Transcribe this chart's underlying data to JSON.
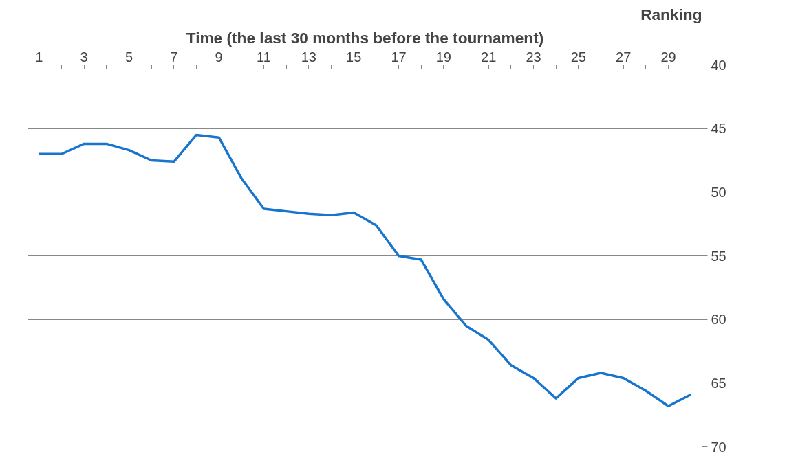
{
  "chart_data": {
    "type": "line",
    "xlabel": "Time (the last 30 months before the tournament)",
    "ylabel": "Ranking",
    "x": [
      1,
      2,
      3,
      4,
      5,
      6,
      7,
      8,
      9,
      10,
      11,
      12,
      13,
      14,
      15,
      16,
      17,
      18,
      19,
      20,
      21,
      22,
      23,
      24,
      25,
      26,
      27,
      28,
      29,
      30
    ],
    "xlim": [
      0.5,
      30.5
    ],
    "xticks": [
      1,
      {
        "value": 2,
        "label": null
      },
      3,
      {
        "value": 4,
        "label": null
      },
      5,
      {
        "value": 6,
        "label": null
      },
      7,
      {
        "value": 8,
        "label": null
      },
      9,
      {
        "value": 10,
        "label": null
      },
      11,
      {
        "value": 12,
        "label": null
      },
      13,
      {
        "value": 14,
        "label": null
      },
      15,
      {
        "value": 16,
        "label": null
      },
      17,
      {
        "value": 18,
        "label": null
      },
      19,
      {
        "value": 20,
        "label": null
      },
      21,
      {
        "value": 22,
        "label": null
      },
      23,
      {
        "value": 24,
        "label": null
      },
      25,
      {
        "value": 26,
        "label": null
      },
      27,
      {
        "value": 28,
        "label": null
      },
      29,
      {
        "value": 30,
        "label": null
      }
    ],
    "series": [
      {
        "color": "#1874cd",
        "values": [
          47.0,
          47.0,
          46.2,
          46.2,
          46.7,
          47.5,
          47.6,
          45.5,
          45.7,
          48.9,
          51.3,
          51.5,
          51.7,
          51.8,
          51.6,
          52.6,
          55.0,
          55.3,
          58.4,
          60.5,
          61.6,
          63.6,
          64.6,
          66.2,
          64.6,
          64.2,
          64.6,
          65.6,
          66.8,
          65.9
        ]
      }
    ],
    "ylim": [
      70,
      40
    ],
    "yticks": [
      40,
      45,
      50,
      55,
      60,
      65,
      70
    ],
    "grid": "y",
    "marker": "none",
    "line_style": "solid"
  }
}
